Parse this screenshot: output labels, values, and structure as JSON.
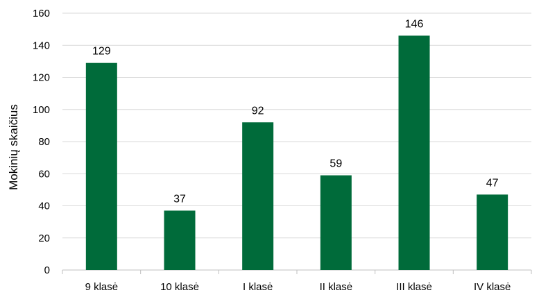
{
  "chart_data": {
    "type": "bar",
    "title": "",
    "xlabel": "",
    "ylabel": "Mokinių skaičius",
    "categories": [
      "9 klasė",
      "10 klasė",
      "I klasė",
      "II klasė",
      "III klasė",
      "IV klasė"
    ],
    "series": [
      {
        "values": [
          129,
          37,
          92,
          59,
          146,
          47
        ]
      }
    ],
    "data_labels": [
      "129",
      "37",
      "92",
      "59",
      "146",
      "47"
    ],
    "ylim": [
      0,
      160
    ],
    "y_ticks": [
      0,
      20,
      40,
      60,
      80,
      100,
      120,
      140,
      160
    ],
    "y_tick_labels": [
      "0",
      "20",
      "40",
      "60",
      "80",
      "100",
      "120",
      "140",
      "160"
    ],
    "grid": true,
    "legend": "none",
    "colors": {
      "bar": "#006b3a",
      "grid": "#d9d9d9",
      "axis": "#bfbfbf"
    }
  }
}
